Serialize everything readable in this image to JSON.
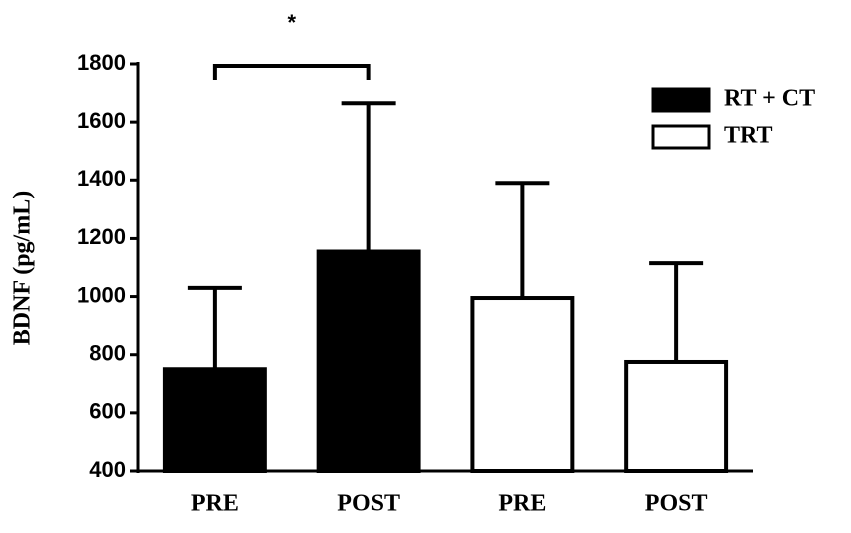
{
  "chart_data": {
    "type": "bar",
    "ylabel": "BDNF (pg/mL)",
    "categories": [
      "PRE",
      "POST",
      "PRE",
      "POST"
    ],
    "series": [
      {
        "name": "RT + CT",
        "color": "#000000",
        "values": [
          750,
          1155,
          null,
          null
        ],
        "errors": [
          280,
          510,
          null,
          null
        ]
      },
      {
        "name": "TRT",
        "color": "#ffffff",
        "values": [
          null,
          null,
          995,
          775
        ],
        "errors": [
          null,
          null,
          395,
          340
        ]
      }
    ],
    "ylim": [
      400,
      1800
    ],
    "yticks": [
      400,
      600,
      800,
      1000,
      1200,
      1400,
      1600,
      1800
    ],
    "annotation": {
      "text": "*",
      "between": [
        0,
        1
      ]
    },
    "legend": "top-right"
  }
}
